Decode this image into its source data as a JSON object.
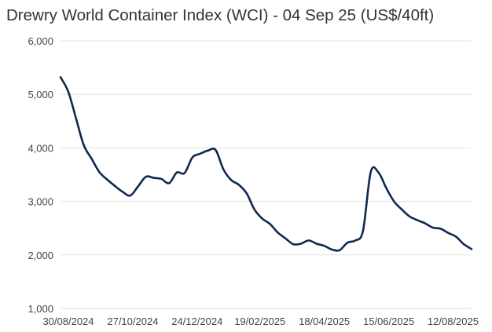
{
  "chart_data": {
    "type": "line",
    "title": "Drewry World Container Index (WCI) - 04 Sep 25 (US$/40ft)",
    "xlabel": "",
    "ylabel": "",
    "ylim": [
      1000,
      6000
    ],
    "yticks": [
      "1,000",
      "2,000",
      "3,000",
      "4,000",
      "5,000",
      "6,000"
    ],
    "ytick_values": [
      1000,
      2000,
      3000,
      4000,
      5000,
      6000
    ],
    "xticks": [
      "30/08/2024",
      "27/10/2024",
      "24/12/2024",
      "19/02/2025",
      "18/04/2025",
      "15/06/2025",
      "12/08/2025"
    ],
    "xtick_week_offsets": [
      0,
      8.3,
      16.6,
      24.7,
      33.0,
      41.3,
      49.6
    ],
    "grid": true,
    "series": [
      {
        "name": "WCI",
        "color": "#0d2a4f",
        "values": [
          5320,
          5050,
          4550,
          4050,
          3800,
          3550,
          3410,
          3290,
          3180,
          3110,
          3280,
          3460,
          3440,
          3420,
          3340,
          3540,
          3530,
          3820,
          3890,
          3950,
          3960,
          3600,
          3400,
          3310,
          3150,
          2850,
          2680,
          2580,
          2420,
          2310,
          2200,
          2210,
          2270,
          2210,
          2170,
          2100,
          2090,
          2230,
          2270,
          2450,
          3550,
          3540,
          3250,
          3000,
          2850,
          2720,
          2650,
          2590,
          2510,
          2490,
          2410,
          2340,
          2200,
          2110
        ]
      }
    ]
  }
}
